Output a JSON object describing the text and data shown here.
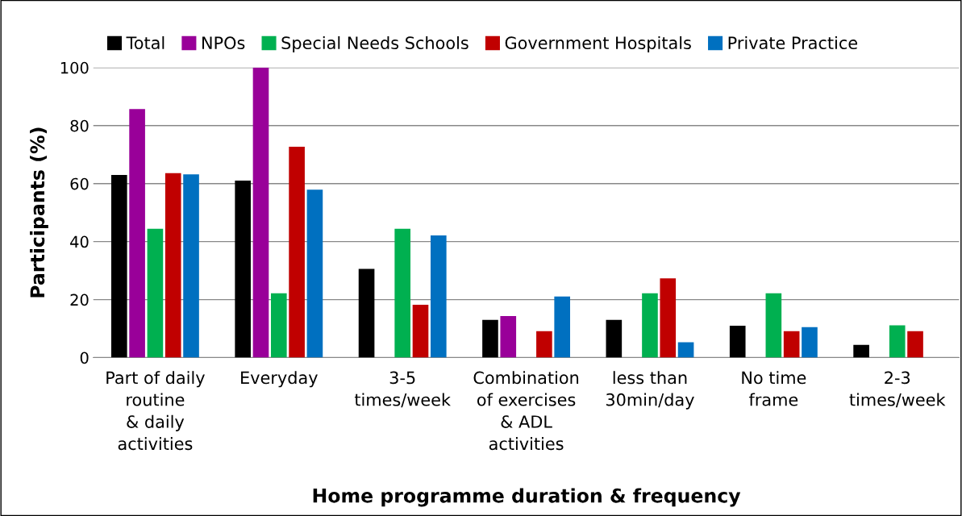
{
  "chart_data": {
    "type": "bar",
    "xlabel": "Home programme duration & frequency",
    "ylabel": "Participants (%)",
    "categories": [
      "Part of daily\nroutine\n& daily\nactivities",
      "Everyday",
      "3-5\ntimes/week",
      "Combination\nof exercises\n& ADL\nactivities",
      "less than\n30min/day",
      "No time\nframe",
      "2-3\ntimes/week"
    ],
    "series": [
      {
        "name": "Total",
        "color": "#000000",
        "values": [
          63,
          61,
          30.6,
          13,
          13,
          11,
          4.4
        ]
      },
      {
        "name": "NPOs",
        "color": "#990099",
        "values": [
          85.7,
          100,
          0,
          14.3,
          0,
          0,
          0
        ]
      },
      {
        "name": "Special Needs Schools",
        "color": "#00b050",
        "values": [
          44.4,
          22.2,
          44.4,
          0,
          22.2,
          22.2,
          11.1
        ]
      },
      {
        "name": "Government Hospitals",
        "color": "#c00000",
        "values": [
          63.6,
          72.7,
          18.2,
          9.1,
          27.3,
          9.1,
          9.1
        ]
      },
      {
        "name": "Private Practice",
        "color": "#0070c0",
        "values": [
          63.2,
          57.9,
          42.1,
          21.1,
          5.3,
          10.5,
          0
        ]
      }
    ],
    "ylim": [
      0,
      100
    ],
    "yticks": [
      0,
      20,
      40,
      60,
      80,
      100
    ],
    "grid": "y",
    "legend": "top"
  }
}
